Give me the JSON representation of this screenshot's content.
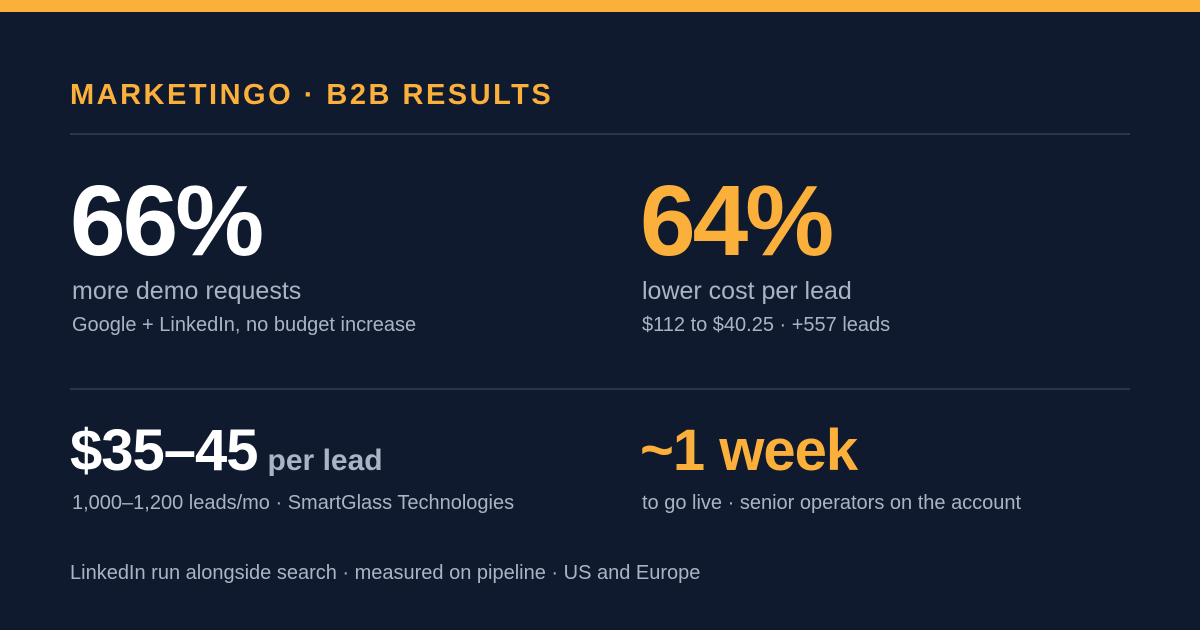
{
  "colors": {
    "accent": "#fbb03b",
    "background": "#0f1a2e",
    "text_primary": "#ffffff",
    "text_muted": "#aab4c4",
    "divider": "#2a3548"
  },
  "header": {
    "eyebrow": "MARKETINGO · B2B RESULTS"
  },
  "stats_top": [
    {
      "value": "66%",
      "label": "more demo requests",
      "sub": "Google + LinkedIn, no budget increase"
    },
    {
      "value": "64%",
      "label": "lower cost per lead",
      "sub": "$112 to $40.25 · +557 leads"
    }
  ],
  "stats_bottom": [
    {
      "value": "$35–45",
      "unit": "per lead",
      "sub": "1,000–1,200 leads/mo · SmartGlass Technologies"
    },
    {
      "value": "~1 week",
      "sub": "to go live · senior operators on the account"
    }
  ],
  "footer": {
    "text": "LinkedIn run alongside search · measured on pipeline · US and Europe"
  }
}
